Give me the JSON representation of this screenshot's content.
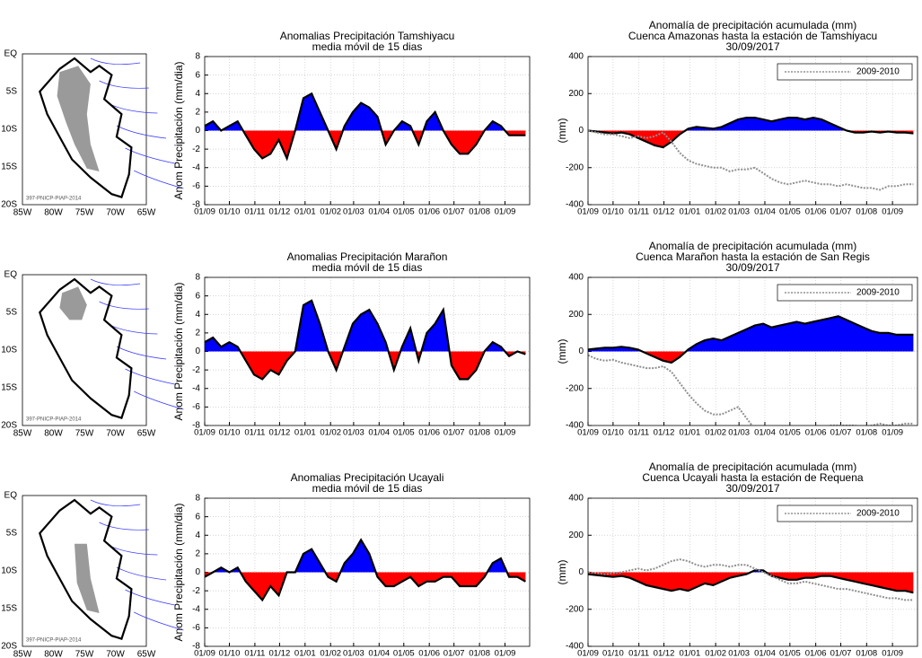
{
  "maps": [
    {
      "yticks": [
        "EQ",
        "5S",
        "10S",
        "15S",
        "20S"
      ],
      "xticks": [
        "85W",
        "80W",
        "75W",
        "70W",
        "65W"
      ],
      "credit": "397-PNICP-PIAP-2014"
    },
    {
      "yticks": [
        "EQ",
        "5S",
        "10S",
        "15S",
        "20S"
      ],
      "xticks": [
        "85W",
        "80W",
        "75W",
        "70W",
        "65W"
      ],
      "credit": "397-PNICP-PIAP-2014"
    },
    {
      "yticks": [
        "EQ",
        "5S",
        "10S",
        "15S",
        "20S"
      ],
      "xticks": [
        "85W",
        "80W",
        "75W",
        "70W",
        "65W"
      ],
      "credit": "397-PNICP-PIAP-2014"
    }
  ],
  "chart_data": [
    {
      "type": "area",
      "title": "Anomalias Precipitación Tamshiyacu",
      "subtitle": "media móvil de 15 dias",
      "ylabel": "Anom Precipitación (mm/dia)",
      "x": [
        0,
        10,
        20,
        30,
        40,
        50,
        60,
        70,
        80,
        90,
        100,
        110,
        120,
        130,
        140,
        150,
        160,
        170,
        180,
        190,
        200,
        210,
        220,
        230,
        240,
        250,
        260,
        270,
        280,
        290,
        300,
        310,
        320,
        330,
        340,
        350,
        360,
        370,
        380,
        390
      ],
      "xlim": [
        0,
        395
      ],
      "xticks": [
        {
          "value": 0,
          "label": "01/09"
        },
        {
          "value": 30,
          "label": "01/10"
        },
        {
          "value": 61,
          "label": "01/11"
        },
        {
          "value": 91,
          "label": "01/12"
        },
        {
          "value": 122,
          "label": "01/01"
        },
        {
          "value": 153,
          "label": "01/02"
        },
        {
          "value": 181,
          "label": "01/03"
        },
        {
          "value": 212,
          "label": "01/04"
        },
        {
          "value": 242,
          "label": "01/05"
        },
        {
          "value": 273,
          "label": "01/06"
        },
        {
          "value": 303,
          "label": "01/07"
        },
        {
          "value": 334,
          "label": "01/08"
        },
        {
          "value": 365,
          "label": "01/09"
        }
      ],
      "ylim": [
        -8,
        8
      ],
      "yticks": [
        -8,
        -6,
        -4,
        -2,
        0,
        2,
        4,
        6,
        8
      ],
      "grid": true,
      "series": [
        {
          "color": "#0000ff",
          "negative_color": "#ff0000",
          "line_color": "#000000",
          "values": [
            0.5,
            1,
            0,
            0.5,
            1,
            -0.5,
            -2,
            -3,
            -2.5,
            -1,
            -3,
            0,
            3.5,
            4,
            2,
            0,
            -2,
            0.5,
            2,
            3,
            2.5,
            1.5,
            -1.5,
            0,
            1,
            0.5,
            -1.5,
            1,
            2,
            0,
            -1.5,
            -2.5,
            -2.5,
            -1.5,
            0,
            1,
            0.5,
            -0.5,
            -0.5,
            -0.5
          ]
        }
      ]
    },
    {
      "type": "area",
      "title": "Anomalía de precipitación acumulada (mm)",
      "subtitle": "Cuenca Amazonas hasta la estación de Tamshiyacu",
      "date": "30/09/2017",
      "ylabel": "(mm)",
      "x": [
        0,
        10,
        20,
        30,
        40,
        50,
        60,
        70,
        80,
        90,
        100,
        110,
        120,
        130,
        140,
        150,
        160,
        170,
        180,
        190,
        200,
        210,
        220,
        230,
        240,
        250,
        260,
        270,
        280,
        290,
        300,
        310,
        320,
        330,
        340,
        350,
        360,
        370,
        380,
        390
      ],
      "xlim": [
        0,
        395
      ],
      "xticks": [
        {
          "value": 0,
          "label": "01/09"
        },
        {
          "value": 30,
          "label": "01/10"
        },
        {
          "value": 61,
          "label": "01/11"
        },
        {
          "value": 91,
          "label": "01/12"
        },
        {
          "value": 122,
          "label": "01/01"
        },
        {
          "value": 153,
          "label": "01/02"
        },
        {
          "value": 181,
          "label": "01/03"
        },
        {
          "value": 212,
          "label": "01/04"
        },
        {
          "value": 242,
          "label": "01/05"
        },
        {
          "value": 273,
          "label": "01/06"
        },
        {
          "value": 303,
          "label": "01/07"
        },
        {
          "value": 334,
          "label": "01/08"
        },
        {
          "value": 365,
          "label": "01/09"
        }
      ],
      "ylim": [
        -400,
        400
      ],
      "yticks": [
        -400,
        -200,
        0,
        200,
        400
      ],
      "grid": true,
      "legend": "upper right",
      "series": [
        {
          "color": "#0000ff",
          "negative_color": "#ff0000",
          "line_color": "#000000",
          "values": [
            0,
            -5,
            -10,
            -15,
            -10,
            -20,
            -40,
            -60,
            -80,
            -90,
            -60,
            -20,
            10,
            20,
            15,
            10,
            20,
            40,
            60,
            70,
            70,
            60,
            50,
            60,
            70,
            70,
            60,
            70,
            60,
            40,
            20,
            0,
            -10,
            -10,
            -5,
            -10,
            -5,
            -10,
            -10,
            -15
          ]
        },
        {
          "name": "2009-2010",
          "line_color": "#909090",
          "dashed": true,
          "values": [
            0,
            -10,
            -20,
            -20,
            -30,
            -40,
            -30,
            -40,
            -30,
            -10,
            -60,
            -120,
            -160,
            -180,
            -190,
            -200,
            -200,
            -220,
            -210,
            -210,
            -200,
            -230,
            -260,
            -280,
            -290,
            -280,
            -270,
            -280,
            -290,
            -290,
            -300,
            -290,
            -300,
            -310,
            -310,
            -320,
            -300,
            -300,
            -290,
            -290
          ]
        }
      ]
    },
    {
      "type": "area",
      "title": "Anomalias Precipitación Marañon",
      "subtitle": "media móvil de 15 dias",
      "ylabel": "Anom Precipitación (mm/dia)",
      "x": [
        0,
        10,
        20,
        30,
        40,
        50,
        60,
        70,
        80,
        90,
        100,
        110,
        120,
        130,
        140,
        150,
        160,
        170,
        180,
        190,
        200,
        210,
        220,
        230,
        240,
        250,
        260,
        270,
        280,
        290,
        300,
        310,
        320,
        330,
        340,
        350,
        360,
        370,
        380,
        390
      ],
      "xlim": [
        0,
        395
      ],
      "xticks": [
        {
          "value": 0,
          "label": "01/09"
        },
        {
          "value": 30,
          "label": "01/10"
        },
        {
          "value": 61,
          "label": "01/11"
        },
        {
          "value": 91,
          "label": "01/12"
        },
        {
          "value": 122,
          "label": "01/01"
        },
        {
          "value": 153,
          "label": "01/02"
        },
        {
          "value": 181,
          "label": "01/03"
        },
        {
          "value": 212,
          "label": "01/04"
        },
        {
          "value": 242,
          "label": "01/05"
        },
        {
          "value": 273,
          "label": "01/06"
        },
        {
          "value": 303,
          "label": "01/07"
        },
        {
          "value": 334,
          "label": "01/08"
        },
        {
          "value": 365,
          "label": "01/09"
        }
      ],
      "ylim": [
        -8,
        8
      ],
      "yticks": [
        -8,
        -6,
        -4,
        -2,
        0,
        2,
        4,
        6,
        8
      ],
      "grid": true,
      "series": [
        {
          "color": "#0000ff",
          "negative_color": "#ff0000",
          "line_color": "#000000",
          "values": [
            1,
            1.5,
            0.5,
            1,
            0.5,
            -1,
            -2.5,
            -3,
            -2,
            -2.5,
            -1,
            0,
            5,
            5.5,
            3,
            0,
            -2,
            0.5,
            3,
            4,
            4.5,
            3,
            1,
            -2,
            0.5,
            2.5,
            -1,
            2,
            3,
            4.5,
            -1.5,
            -3,
            -3,
            -2,
            0,
            1,
            0.5,
            -0.5,
            0,
            -0.3
          ]
        }
      ]
    },
    {
      "type": "area",
      "title": "Anomalía de precipitación acumulada (mm)",
      "subtitle": "Cuenca Marañon hasta la estación de San Regis",
      "date": "30/09/2017",
      "ylabel": "(mm)",
      "x": [
        0,
        10,
        20,
        30,
        40,
        50,
        60,
        70,
        80,
        90,
        100,
        110,
        120,
        130,
        140,
        150,
        160,
        170,
        180,
        190,
        200,
        210,
        220,
        230,
        240,
        250,
        260,
        270,
        280,
        290,
        300,
        310,
        320,
        330,
        340,
        350,
        360,
        370,
        380,
        390
      ],
      "xlim": [
        0,
        395
      ],
      "xticks": [
        {
          "value": 0,
          "label": "01/09"
        },
        {
          "value": 30,
          "label": "01/10"
        },
        {
          "value": 61,
          "label": "01/11"
        },
        {
          "value": 91,
          "label": "01/12"
        },
        {
          "value": 122,
          "label": "01/01"
        },
        {
          "value": 153,
          "label": "01/02"
        },
        {
          "value": 181,
          "label": "01/03"
        },
        {
          "value": 212,
          "label": "01/04"
        },
        {
          "value": 242,
          "label": "01/05"
        },
        {
          "value": 273,
          "label": "01/06"
        },
        {
          "value": 303,
          "label": "01/07"
        },
        {
          "value": 334,
          "label": "01/08"
        },
        {
          "value": 365,
          "label": "01/09"
        }
      ],
      "ylim": [
        -400,
        400
      ],
      "yticks": [
        -400,
        -200,
        0,
        200,
        400
      ],
      "grid": true,
      "legend": "upper right",
      "series": [
        {
          "color": "#0000ff",
          "negative_color": "#ff0000",
          "line_color": "#000000",
          "values": [
            10,
            15,
            20,
            20,
            25,
            20,
            10,
            -10,
            -30,
            -50,
            -60,
            -30,
            10,
            40,
            60,
            70,
            60,
            80,
            100,
            120,
            140,
            150,
            130,
            140,
            150,
            160,
            150,
            160,
            170,
            180,
            190,
            170,
            150,
            130,
            110,
            100,
            100,
            90,
            90,
            90
          ]
        },
        {
          "name": "2009-2010",
          "line_color": "#909090",
          "dashed": true,
          "values": [
            -20,
            -40,
            -50,
            -45,
            -60,
            -70,
            -80,
            -90,
            -90,
            -80,
            -110,
            -170,
            -230,
            -280,
            -320,
            -340,
            -340,
            -320,
            -300,
            -360,
            -420,
            -450,
            -470,
            -480,
            -480,
            -470,
            -450,
            -440,
            -420,
            -400,
            -400,
            -400,
            -400,
            -410,
            -400,
            -390,
            -400,
            -400,
            -390,
            -390
          ]
        }
      ]
    },
    {
      "type": "area",
      "title": "Anomalias Precipitación Ucayali",
      "subtitle": "media móvil de 15 dias",
      "ylabel": "Anom Precipitación (mm/dia)",
      "x": [
        0,
        10,
        20,
        30,
        40,
        50,
        60,
        70,
        80,
        90,
        100,
        110,
        120,
        130,
        140,
        150,
        160,
        170,
        180,
        190,
        200,
        210,
        220,
        230,
        240,
        250,
        260,
        270,
        280,
        290,
        300,
        310,
        320,
        330,
        340,
        350,
        360,
        370,
        380,
        390
      ],
      "xlim": [
        0,
        395
      ],
      "xticks": [
        {
          "value": 0,
          "label": "01/09"
        },
        {
          "value": 30,
          "label": "01/10"
        },
        {
          "value": 61,
          "label": "01/11"
        },
        {
          "value": 91,
          "label": "01/12"
        },
        {
          "value": 122,
          "label": "01/01"
        },
        {
          "value": 153,
          "label": "01/02"
        },
        {
          "value": 181,
          "label": "01/03"
        },
        {
          "value": 212,
          "label": "01/04"
        },
        {
          "value": 242,
          "label": "01/05"
        },
        {
          "value": 273,
          "label": "01/06"
        },
        {
          "value": 303,
          "label": "01/07"
        },
        {
          "value": 334,
          "label": "01/08"
        },
        {
          "value": 365,
          "label": "01/09"
        }
      ],
      "ylim": [
        -8,
        8
      ],
      "yticks": [
        -8,
        -6,
        -4,
        -2,
        0,
        2,
        4,
        6,
        8
      ],
      "grid": true,
      "series": [
        {
          "color": "#0000ff",
          "negative_color": "#ff0000",
          "line_color": "#000000",
          "values": [
            -0.5,
            0,
            0.5,
            0,
            0.5,
            -1,
            -2,
            -3,
            -1.5,
            -2.5,
            0,
            0,
            2,
            2.5,
            1,
            -0.5,
            -1,
            1,
            2,
            3.5,
            2,
            -0.5,
            -1.5,
            -1.5,
            -1,
            -0.5,
            -1.5,
            -1,
            -1,
            -0.5,
            -0.5,
            -1.5,
            -1.5,
            -1.5,
            -0.5,
            1,
            1.5,
            -0.5,
            -0.5,
            -1
          ]
        }
      ]
    },
    {
      "type": "area",
      "title": "Anomalía de precipitación acumulada (mm)",
      "subtitle": "Cuenca Ucayali hasta la estación de Requena",
      "date": "30/09/2017",
      "ylabel": "(mm)",
      "x": [
        0,
        10,
        20,
        30,
        40,
        50,
        60,
        70,
        80,
        90,
        100,
        110,
        120,
        130,
        140,
        150,
        160,
        170,
        180,
        190,
        200,
        210,
        220,
        230,
        240,
        250,
        260,
        270,
        280,
        290,
        300,
        310,
        320,
        330,
        340,
        350,
        360,
        370,
        380,
        390
      ],
      "xlim": [
        0,
        395
      ],
      "xticks": [
        {
          "value": 0,
          "label": "01/09"
        },
        {
          "value": 30,
          "label": "01/10"
        },
        {
          "value": 61,
          "label": "01/11"
        },
        {
          "value": 91,
          "label": "01/12"
        },
        {
          "value": 122,
          "label": "01/01"
        },
        {
          "value": 153,
          "label": "01/02"
        },
        {
          "value": 181,
          "label": "01/03"
        },
        {
          "value": 212,
          "label": "01/04"
        },
        {
          "value": 242,
          "label": "01/05"
        },
        {
          "value": 273,
          "label": "01/06"
        },
        {
          "value": 303,
          "label": "01/07"
        },
        {
          "value": 334,
          "label": "01/08"
        },
        {
          "value": 365,
          "label": "01/09"
        }
      ],
      "ylim": [
        -400,
        400
      ],
      "yticks": [
        -400,
        -200,
        0,
        200,
        400
      ],
      "grid": true,
      "legend": "upper right",
      "series": [
        {
          "color": "#0000ff",
          "negative_color": "#ff0000",
          "line_color": "#000000",
          "values": [
            -10,
            -15,
            -20,
            -25,
            -20,
            -30,
            -50,
            -70,
            -80,
            -90,
            -100,
            -90,
            -100,
            -80,
            -60,
            -70,
            -50,
            -30,
            -20,
            -10,
            10,
            10,
            -20,
            -30,
            -40,
            -40,
            -30,
            -30,
            -20,
            -20,
            -30,
            -40,
            -50,
            -60,
            -70,
            -80,
            -90,
            -100,
            -100,
            -110
          ]
        },
        {
          "name": "2009-2010",
          "line_color": "#909090",
          "dashed": true,
          "values": [
            0,
            -5,
            -10,
            -5,
            0,
            10,
            20,
            10,
            20,
            40,
            60,
            70,
            60,
            40,
            30,
            40,
            40,
            30,
            40,
            40,
            20,
            0,
            -20,
            -40,
            -60,
            -60,
            -50,
            -60,
            -70,
            -80,
            -90,
            -90,
            -100,
            -110,
            -120,
            -130,
            -140,
            -140,
            -150,
            -150
          ]
        }
      ]
    }
  ]
}
